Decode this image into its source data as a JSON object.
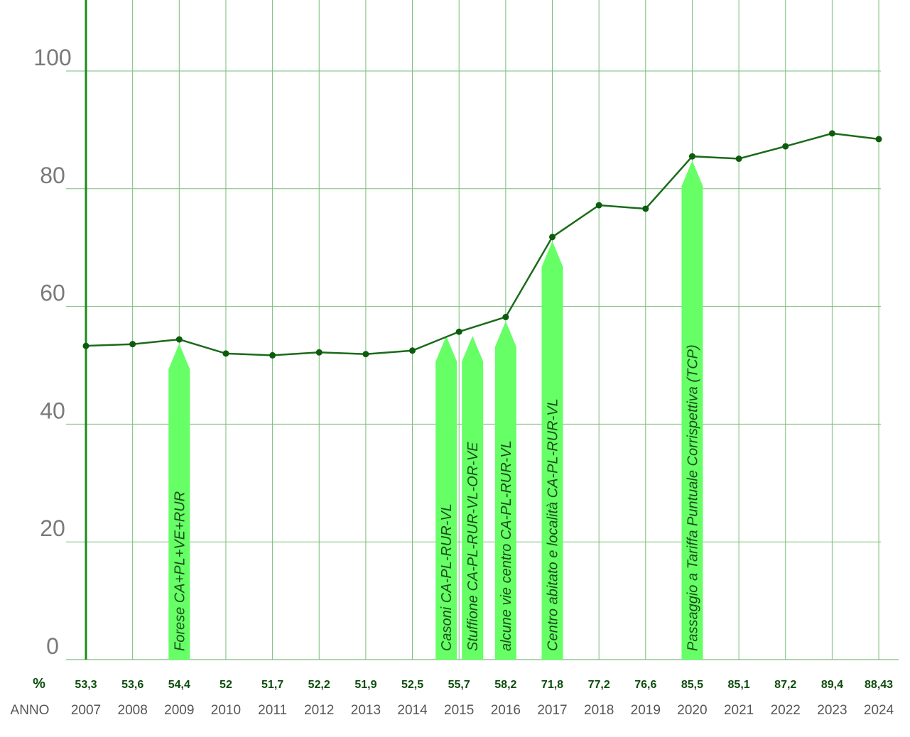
{
  "chart_data": {
    "type": "line",
    "title": "",
    "xlabel": "ANNO",
    "ylabel": "%",
    "ylim": [
      0,
      110
    ],
    "yticks": [
      0,
      20,
      40,
      60,
      80,
      100
    ],
    "grid": true,
    "categories": [
      "2007",
      "2008",
      "2009",
      "2010",
      "2011",
      "2012",
      "2013",
      "2014",
      "2015",
      "2016",
      "2017",
      "2018",
      "2019",
      "2020",
      "2021",
      "2022",
      "2023",
      "2024"
    ],
    "values": [
      53.3,
      53.6,
      54.4,
      52,
      51.7,
      52.2,
      51.9,
      52.5,
      55.7,
      58.2,
      71.8,
      77.2,
      76.6,
      85.5,
      85.1,
      87.2,
      89.4,
      88.43
    ],
    "value_labels": [
      "53,3",
      "53,6",
      "54,4",
      "52",
      "51,7",
      "52,2",
      "51,9",
      "52,5",
      "55,7",
      "58,2",
      "71,8",
      "77,2",
      "76,6",
      "85,5",
      "85,1",
      "87,2",
      "89,4",
      "88,43"
    ],
    "row_labels": {
      "percent": "%",
      "year": "ANNO"
    },
    "annotations": [
      {
        "x": "2009",
        "text": "Forese CA+PL+VE+RUR"
      },
      {
        "x": "2015",
        "text": "Casoni CA-PL-RUR-VL"
      },
      {
        "x": "2015",
        "text": "Stuffione CA-PL-RUR-VL-OR-VE"
      },
      {
        "x": "2016",
        "text": "alcune vie centro CA-PL-RUR-VL"
      },
      {
        "x": "2017",
        "text": "Centro abitato e località CA-PL-RUR-VL"
      },
      {
        "x": "2020",
        "text": "Passaggio a  Tariffa Puntuale Corrispettiva (TCP)"
      }
    ],
    "colors": {
      "line": "#1a6b1a",
      "point": "#0d5c0d",
      "arrow": "#66ff66",
      "grid": "#7bbd7b",
      "axis": "#1a8c1a"
    }
  }
}
